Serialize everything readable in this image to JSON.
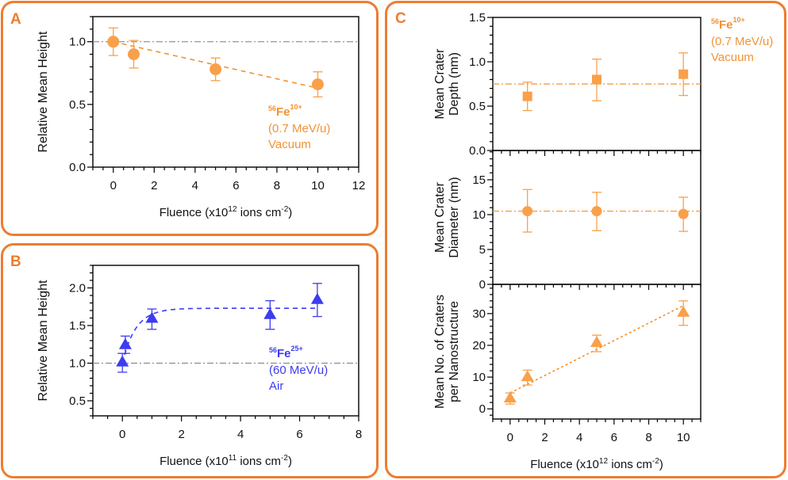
{
  "panels": {
    "A": {
      "label": "A"
    },
    "B": {
      "label": "B"
    },
    "C": {
      "label": "C"
    }
  },
  "colors": {
    "border": "#ED7D31",
    "orange": "#F9A04A",
    "orange_line": "#F39234",
    "blue": "#3C3CF0",
    "ref_line": "#8C8C8C",
    "panel_label": "#ED7D31"
  },
  "chart_data": [
    {
      "id": "A",
      "type": "scatter",
      "title": "",
      "xlabel": "Fluence (x10^12 ions cm^-2)",
      "xlabel_parts": {
        "pre": "Fluence (x10",
        "exp": "12",
        "mid": " ions cm",
        "exp2": "-2",
        "post": ")"
      },
      "ylabel": "Relative Mean Height",
      "xlim": [
        -1,
        12
      ],
      "ylim": [
        0,
        1.2
      ],
      "xticks": [
        0,
        2,
        4,
        6,
        8,
        10,
        12
      ],
      "xtick_labels": [
        "0",
        "2",
        "4",
        "6",
        "8",
        "10",
        "12"
      ],
      "yticks": [
        0,
        0.5,
        1.0
      ],
      "ytick_labels": [
        "0.0",
        "0.5",
        "1.0"
      ],
      "marker": "circle",
      "color": "orange",
      "points": [
        {
          "x": 0,
          "y": 1.0,
          "err_low": 0.89,
          "err_high": 1.11
        },
        {
          "x": 1,
          "y": 0.9,
          "err_low": 0.79,
          "err_high": 1.01
        },
        {
          "x": 5,
          "y": 0.78,
          "err_low": 0.69,
          "err_high": 0.87
        },
        {
          "x": 10,
          "y": 0.66,
          "err_low": 0.56,
          "err_high": 0.76
        }
      ],
      "fit": {
        "type": "linear",
        "style": "dashed",
        "x": [
          0,
          10
        ],
        "y": [
          1.0,
          0.63
        ]
      },
      "reference_line": {
        "y": 1.0,
        "style": "dash-dot"
      },
      "annotation": {
        "isotope": "56",
        "element": "Fe",
        "charge": "10+",
        "energy": "(0.7 MeV/u)",
        "environment": "Vacuum"
      }
    },
    {
      "id": "B",
      "type": "scatter",
      "xlabel": "Fluence (x10^11 ions cm^-2)",
      "xlabel_parts": {
        "pre": "Fluence (x10",
        "exp": "11",
        "mid": " ions cm",
        "exp2": "-2",
        "post": ")"
      },
      "ylabel": "Relative Mean Height",
      "xlim": [
        -1,
        8
      ],
      "ylim": [
        0.3,
        2.3
      ],
      "xticks": [
        0,
        2,
        4,
        6,
        8
      ],
      "xtick_labels": [
        "0",
        "2",
        "4",
        "6",
        "8"
      ],
      "yticks": [
        0.5,
        1.0,
        1.5,
        2.0
      ],
      "ytick_labels": [
        "0.5",
        "1.0",
        "1.5",
        "2.0"
      ],
      "marker": "triangle",
      "color": "blue",
      "points": [
        {
          "x": 0,
          "y": 1.02,
          "err_low": 0.88,
          "err_high": 1.13
        },
        {
          "x": 0.1,
          "y": 1.25,
          "err_low": 1.13,
          "err_high": 1.36
        },
        {
          "x": 1,
          "y": 1.6,
          "err_low": 1.45,
          "err_high": 1.72
        },
        {
          "x": 5,
          "y": 1.65,
          "err_low": 1.45,
          "err_high": 1.83
        },
        {
          "x": 6.6,
          "y": 1.85,
          "err_low": 1.62,
          "err_high": 2.06
        }
      ],
      "fit": {
        "type": "exponential-saturation",
        "style": "dashed",
        "y0": 1.0,
        "plateau": 1.73,
        "rate": 2.2,
        "x_range": [
          0,
          6.6
        ]
      },
      "reference_line": {
        "y": 1.0,
        "style": "dash-dot"
      },
      "annotation": {
        "isotope": "56",
        "element": "Fe",
        "charge": "25+",
        "energy": "(60 MeV/u)",
        "environment": "Air"
      }
    },
    {
      "id": "C1",
      "type": "scatter",
      "ylabel": [
        "Mean Crater",
        "Depth (nm)"
      ],
      "xlim": [
        -1,
        11
      ],
      "ylim": [
        0,
        1.5
      ],
      "xticks": [
        0,
        2,
        4,
        6,
        8,
        10
      ],
      "yticks": [
        0,
        0.5,
        1.0,
        1.5
      ],
      "ytick_labels": [
        "0.0",
        "0.5",
        "1.0",
        "1.5"
      ],
      "marker": "square",
      "color": "orange",
      "points": [
        {
          "x": 1,
          "y": 0.61,
          "err_low": 0.45,
          "err_high": 0.77
        },
        {
          "x": 5,
          "y": 0.8,
          "err_low": 0.56,
          "err_high": 1.03
        },
        {
          "x": 10,
          "y": 0.86,
          "err_low": 0.62,
          "err_high": 1.1
        }
      ],
      "reference_line": {
        "y": 0.75,
        "style": "dash-dot"
      },
      "annotation": {
        "isotope": "56",
        "element": "Fe",
        "charge": "10+",
        "energy": "(0.7 MeV/u)",
        "environment": "Vacuum"
      }
    },
    {
      "id": "C2",
      "type": "scatter",
      "ylabel": [
        "Mean Crater",
        "Diameter (nm)"
      ],
      "xlim": [
        -1,
        11
      ],
      "ylim": [
        0,
        19.2
      ],
      "xticks": [
        0,
        2,
        4,
        6,
        8,
        10
      ],
      "yticks": [
        0,
        5,
        10,
        15
      ],
      "ytick_labels": [
        "0",
        "5",
        "10",
        "15"
      ],
      "marker": "circle",
      "color": "orange",
      "points": [
        {
          "x": 1,
          "y": 10.5,
          "err_low": 7.5,
          "err_high": 13.6
        },
        {
          "x": 5,
          "y": 10.5,
          "err_low": 7.7,
          "err_high": 13.2
        },
        {
          "x": 10,
          "y": 10.1,
          "err_low": 7.6,
          "err_high": 12.5
        }
      ],
      "reference_line": {
        "y": 10.5,
        "style": "dash-dot"
      }
    },
    {
      "id": "C3",
      "type": "scatter",
      "xlabel": "Fluence (x10^12 ions cm^-2)",
      "xlabel_parts": {
        "pre": "Fluence (x10",
        "exp": "12",
        "mid": " ions cm",
        "exp2": "-2",
        "post": ")"
      },
      "ylabel": [
        "Mean No. of Craters",
        "per Nanostructure"
      ],
      "xlim": [
        -1,
        11
      ],
      "ylim": [
        -3.2,
        39.2
      ],
      "xticks": [
        0,
        2,
        4,
        6,
        8,
        10
      ],
      "xtick_labels": [
        "0",
        "2",
        "4",
        "6",
        "8",
        "10"
      ],
      "yticks": [
        0,
        10,
        20,
        30
      ],
      "ytick_labels": [
        "0",
        "10",
        "20",
        "30"
      ],
      "marker": "triangle",
      "color": "orange",
      "points": [
        {
          "x": 0,
          "y": 3.5,
          "err_low": 1.5,
          "err_high": 5.0
        },
        {
          "x": 1,
          "y": 10.2,
          "err_low": 7.5,
          "err_high": 12.2
        },
        {
          "x": 5,
          "y": 21.0,
          "err_low": 18.0,
          "err_high": 23.2
        },
        {
          "x": 10,
          "y": 30.5,
          "err_low": 26.3,
          "err_high": 34.0
        }
      ],
      "fit": {
        "type": "linear",
        "style": "dotted",
        "x": [
          0,
          10
        ],
        "y": [
          5.0,
          32.5
        ]
      }
    }
  ]
}
